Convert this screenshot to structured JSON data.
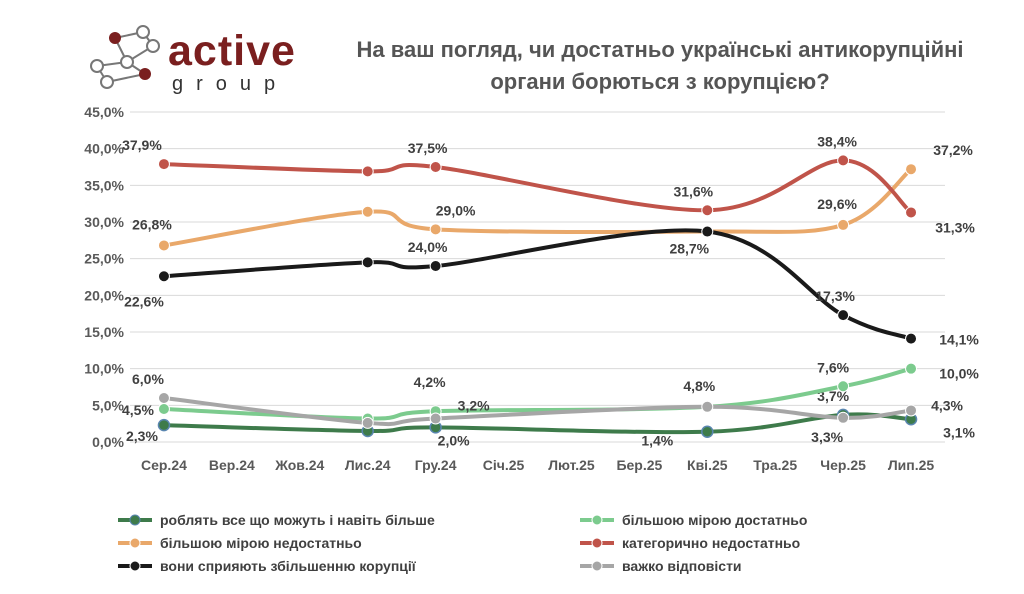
{
  "brand": {
    "name": "active",
    "sub": "group"
  },
  "colors": {
    "logo_dark": "#7a1f1f",
    "logo_line": "#777777",
    "series1": "#3e7b4b",
    "series2": "#7ccb8e",
    "series3": "#e9a86a",
    "series4": "#c0544a",
    "series5": "#1a1a1a",
    "series6": "#a6a6a6",
    "grid": "#d9d9d9",
    "text": "#595959",
    "label": "#404040"
  },
  "chart_data": {
    "type": "line",
    "title": "На ваш погляд, чи достатньо українські антикорупційні органи борються з корупцією?",
    "categories": [
      "Сер.24",
      "Вер.24",
      "Жов.24",
      "Лис.24",
      "Гру.24",
      "Січ.25",
      "Лют.25",
      "Бер.25",
      "Кві.25",
      "Тра.25",
      "Чер.25",
      "Лип.25"
    ],
    "ylim": [
      0,
      45
    ],
    "yticks": [
      "0,0%",
      "5,0%",
      "10,0%",
      "15,0%",
      "20,0%",
      "25,0%",
      "30,0%",
      "35,0%",
      "40,0%",
      "45,0%"
    ],
    "grid": true,
    "legend_position": "bottom",
    "series": [
      {
        "name": "роблять все що можуть і навіть більше",
        "color_key": "series1",
        "points": [
          [
            0,
            2.3
          ],
          [
            3,
            1.5
          ],
          [
            4,
            2.0
          ],
          [
            8,
            1.4
          ],
          [
            10,
            3.7
          ],
          [
            11,
            3.1
          ]
        ],
        "labels": [
          "2,3%",
          "",
          "2,0%",
          "1,4%",
          "3,7%",
          "3,1%"
        ]
      },
      {
        "name": "більшою мірою достатньо",
        "color_key": "series2",
        "points": [
          [
            0,
            4.5
          ],
          [
            3,
            3.2
          ],
          [
            4,
            4.2
          ],
          [
            8,
            4.8
          ],
          [
            10,
            7.6
          ],
          [
            11,
            10.0
          ]
        ],
        "labels": [
          "4,5%",
          "",
          "4,2%",
          "",
          "7,6%",
          "10,0%"
        ]
      },
      {
        "name": "більшою мірою недостатньо",
        "color_key": "series3",
        "points": [
          [
            0,
            26.8
          ],
          [
            3,
            31.4
          ],
          [
            4,
            29.0
          ],
          [
            8,
            28.7
          ],
          [
            10,
            29.6
          ],
          [
            11,
            37.2
          ]
        ],
        "labels": [
          "26,8%",
          "",
          "29,0%",
          "",
          "29,6%",
          "37,2%"
        ]
      },
      {
        "name": "категорично недостатньо",
        "color_key": "series4",
        "points": [
          [
            0,
            37.9
          ],
          [
            3,
            36.9
          ],
          [
            4,
            37.5
          ],
          [
            8,
            31.6
          ],
          [
            10,
            38.4
          ],
          [
            11,
            31.3
          ]
        ],
        "labels": [
          "37,9%",
          "",
          "37,5%",
          "31,6%",
          "38,4%",
          "31,3%"
        ]
      },
      {
        "name": "вони сприяють збільшенню корупції",
        "color_key": "series5",
        "points": [
          [
            0,
            22.6
          ],
          [
            3,
            24.5
          ],
          [
            4,
            24.0
          ],
          [
            8,
            28.7
          ],
          [
            10,
            17.3
          ],
          [
            11,
            14.1
          ]
        ],
        "labels": [
          "22,6%",
          "",
          "24,0%",
          "28,7%",
          "17,3%",
          "14,1%"
        ]
      },
      {
        "name": "важко відповісти",
        "color_key": "series6",
        "points": [
          [
            0,
            6.0
          ],
          [
            3,
            2.6
          ],
          [
            4,
            3.2
          ],
          [
            8,
            4.8
          ],
          [
            10,
            3.3
          ],
          [
            11,
            4.3
          ]
        ],
        "labels": [
          "6,0%",
          "",
          "3,2%",
          "4,8%",
          "3,3%",
          "4,3%"
        ]
      }
    ]
  }
}
